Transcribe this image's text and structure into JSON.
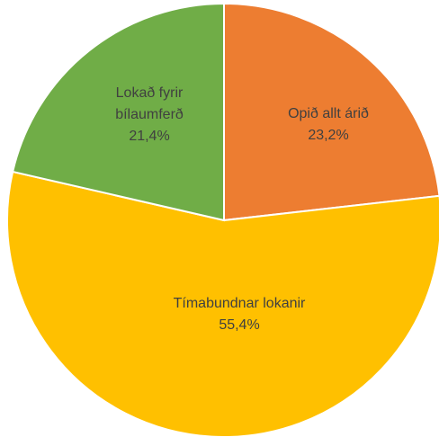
{
  "chart_data": {
    "type": "pie",
    "categories": [
      "Opið allt árið",
      "Tímabundnar lokanir",
      "Lokað fyrir bílaumferð"
    ],
    "values": [
      23.2,
      55.4,
      21.4
    ],
    "value_labels": [
      "23,2%",
      "55,4%",
      "21,4%"
    ],
    "colors": [
      "#ED7D31",
      "#FFC000",
      "#70AD47"
    ]
  }
}
